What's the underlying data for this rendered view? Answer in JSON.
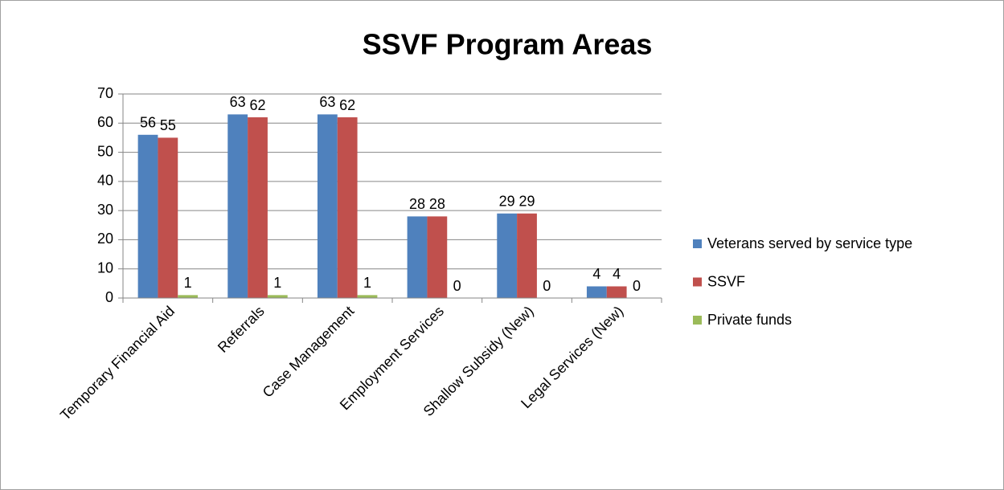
{
  "chart_data": {
    "type": "bar",
    "title": "SSVF Program Areas",
    "categories": [
      "Temporary Financial Aid",
      "Referrals",
      "Case Management",
      "Employment Services",
      "Shallow Subsidy (New)",
      "Legal Services (New)"
    ],
    "series": [
      {
        "name": "Veterans served by service type",
        "color": "#4f81bd",
        "values": [
          56,
          63,
          63,
          28,
          29,
          4
        ]
      },
      {
        "name": "SSVF",
        "color": "#c0504d",
        "values": [
          55,
          62,
          62,
          28,
          29,
          4
        ]
      },
      {
        "name": "Private funds",
        "color": "#9bbb59",
        "values": [
          1,
          1,
          1,
          0,
          0,
          0
        ]
      }
    ],
    "ylim": [
      0,
      70
    ],
    "yticks": [
      0,
      10,
      20,
      30,
      40,
      50,
      60,
      70
    ],
    "grid": true,
    "legend": "right"
  }
}
